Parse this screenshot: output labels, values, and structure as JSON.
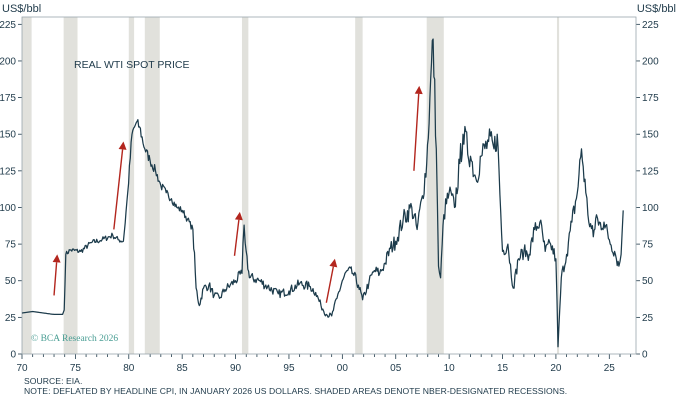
{
  "chart_data": {
    "type": "line",
    "title": "REAL WTI SPOT PRICE",
    "left_unit": "US$/bbl",
    "right_unit": "US$/bbl",
    "xlim": [
      1970,
      2027.5
    ],
    "ylim": [
      0,
      230
    ],
    "y_ticks": [
      0,
      25,
      50,
      75,
      100,
      125,
      150,
      175,
      200,
      225
    ],
    "x_ticks": [
      {
        "v": 1970,
        "label": "70"
      },
      {
        "v": 1975,
        "label": "75"
      },
      {
        "v": 1980,
        "label": "80"
      },
      {
        "v": 1985,
        "label": "85"
      },
      {
        "v": 1990,
        "label": "90"
      },
      {
        "v": 1995,
        "label": "95"
      },
      {
        "v": 2000,
        "label": "00"
      },
      {
        "v": 2005,
        "label": "05"
      },
      {
        "v": 2010,
        "label": "10"
      },
      {
        "v": 2015,
        "label": "15"
      },
      {
        "v": 2020,
        "label": "20"
      },
      {
        "v": 2025,
        "label": "25"
      }
    ],
    "recessions": [
      [
        1970.0,
        1970.9
      ],
      [
        1973.9,
        1975.2
      ],
      [
        1980.0,
        1980.5
      ],
      [
        1981.5,
        1982.9
      ],
      [
        1990.6,
        1991.2
      ],
      [
        2001.2,
        2001.9
      ],
      [
        2007.9,
        2009.5
      ],
      [
        2020.1,
        2020.3
      ]
    ],
    "series": [
      {
        "values": [
          [
            1970.0,
            28
          ],
          [
            1971.0,
            29
          ],
          [
            1972.0,
            28
          ],
          [
            1973.0,
            27
          ],
          [
            1973.8,
            27
          ],
          [
            1973.95,
            30
          ],
          [
            1974.1,
            68
          ],
          [
            1974.5,
            71
          ],
          [
            1975.5,
            70
          ],
          [
            1976.5,
            76
          ],
          [
            1977.5,
            78
          ],
          [
            1978.5,
            81
          ],
          [
            1979.0,
            78
          ],
          [
            1979.5,
            77
          ],
          [
            1979.9,
            110
          ],
          [
            1980.3,
            150
          ],
          [
            1980.7,
            158
          ],
          [
            1981.0,
            155
          ],
          [
            1981.5,
            140
          ],
          [
            1982.0,
            132
          ],
          [
            1982.5,
            125
          ],
          [
            1983.0,
            115
          ],
          [
            1983.5,
            110
          ],
          [
            1984.0,
            106
          ],
          [
            1984.5,
            100
          ],
          [
            1985.0,
            98
          ],
          [
            1985.5,
            92
          ],
          [
            1986.0,
            85
          ],
          [
            1986.3,
            45
          ],
          [
            1986.6,
            33
          ],
          [
            1987.0,
            45
          ],
          [
            1987.5,
            47
          ],
          [
            1988.0,
            40
          ],
          [
            1988.5,
            38
          ],
          [
            1989.0,
            44
          ],
          [
            1989.5,
            47
          ],
          [
            1990.0,
            50
          ],
          [
            1990.6,
            55
          ],
          [
            1990.8,
            88
          ],
          [
            1991.0,
            70
          ],
          [
            1991.3,
            52
          ],
          [
            1992.0,
            51
          ],
          [
            1993.0,
            46
          ],
          [
            1994.0,
            41
          ],
          [
            1995.0,
            43
          ],
          [
            1996.0,
            48
          ],
          [
            1997.0,
            46
          ],
          [
            1997.5,
            42
          ],
          [
            1998.0,
            33
          ],
          [
            1998.5,
            27
          ],
          [
            1999.0,
            26
          ],
          [
            1999.5,
            38
          ],
          [
            2000.0,
            50
          ],
          [
            2000.5,
            57
          ],
          [
            2001.0,
            55
          ],
          [
            2001.5,
            47
          ],
          [
            2001.9,
            37
          ],
          [
            2002.5,
            49
          ],
          [
            2003.0,
            57
          ],
          [
            2003.5,
            55
          ],
          [
            2004.0,
            62
          ],
          [
            2004.5,
            72
          ],
          [
            2005.0,
            77
          ],
          [
            2005.7,
            92
          ],
          [
            2006.5,
            100
          ],
          [
            2007.0,
            85
          ],
          [
            2007.5,
            108
          ],
          [
            2007.9,
            130
          ],
          [
            2008.2,
            175
          ],
          [
            2008.5,
            215
          ],
          [
            2008.8,
            140
          ],
          [
            2009.0,
            60
          ],
          [
            2009.2,
            52
          ],
          [
            2009.5,
            95
          ],
          [
            2010.0,
            110
          ],
          [
            2010.5,
            100
          ],
          [
            2011.0,
            130
          ],
          [
            2011.3,
            150
          ],
          [
            2012.0,
            135
          ],
          [
            2012.5,
            120
          ],
          [
            2013.0,
            135
          ],
          [
            2013.7,
            145
          ],
          [
            2014.2,
            140
          ],
          [
            2014.5,
            150
          ],
          [
            2015.0,
            70
          ],
          [
            2015.5,
            75
          ],
          [
            2016.0,
            45
          ],
          [
            2016.5,
            65
          ],
          [
            2017.0,
            70
          ],
          [
            2017.5,
            68
          ],
          [
            2018.0,
            85
          ],
          [
            2018.5,
            90
          ],
          [
            2019.0,
            70
          ],
          [
            2019.5,
            75
          ],
          [
            2020.0,
            65
          ],
          [
            2020.2,
            5
          ],
          [
            2020.5,
            52
          ],
          [
            2021.0,
            68
          ],
          [
            2021.5,
            90
          ],
          [
            2022.0,
            110
          ],
          [
            2022.4,
            140
          ],
          [
            2022.8,
            110
          ],
          [
            2023.0,
            95
          ],
          [
            2023.5,
            80
          ],
          [
            2023.8,
            95
          ],
          [
            2024.0,
            88
          ],
          [
            2024.5,
            90
          ],
          [
            2025.0,
            78
          ],
          [
            2025.5,
            70
          ],
          [
            2025.9,
            60
          ],
          [
            2026.1,
            68
          ],
          [
            2026.3,
            98
          ]
        ]
      }
    ],
    "arrows": [
      {
        "from": [
          1973.0,
          40
        ],
        "to": [
          1973.3,
          68
        ]
      },
      {
        "from": [
          1978.6,
          85
        ],
        "to": [
          1979.5,
          145
        ]
      },
      {
        "from": [
          1989.9,
          67
        ],
        "to": [
          1990.4,
          97
        ]
      },
      {
        "from": [
          1998.5,
          35
        ],
        "to": [
          1999.3,
          65
        ]
      },
      {
        "from": [
          2006.7,
          125
        ],
        "to": [
          2007.2,
          183
        ]
      }
    ],
    "credit": "© BCA Research 2026"
  },
  "footer": {
    "source": "SOURCE: EIA.",
    "note": "NOTE: DEFLATED BY HEADLINE CPI, IN JANUARY 2026 US DOLLARS. SHADED AREAS DENOTE NBER-DESIGNATED RECESSIONS."
  }
}
